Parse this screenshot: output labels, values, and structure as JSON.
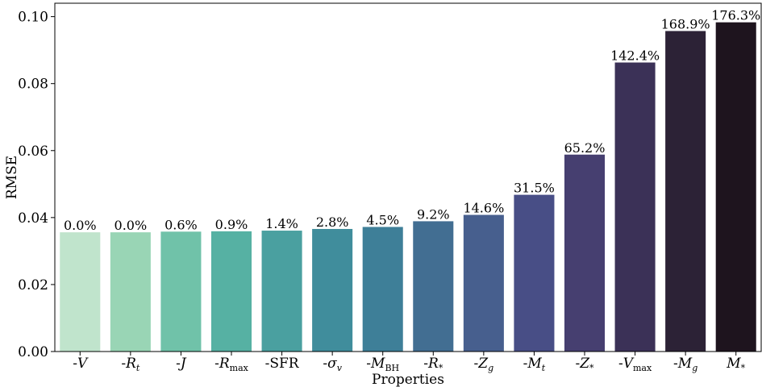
{
  "chart_data": {
    "type": "bar",
    "xlabel": "Properties",
    "ylabel": "RMSE",
    "ylim": [
      0,
      0.104
    ],
    "yticks": [
      "0.00",
      "0.02",
      "0.04",
      "0.06",
      "0.08",
      "0.10"
    ],
    "ytick_values": [
      0,
      0.02,
      0.04,
      0.06,
      0.08,
      0.1
    ],
    "grid": false,
    "categories": [
      {
        "prefix": "-",
        "sym": "V",
        "sub": ""
      },
      {
        "prefix": "-",
        "sym": "R",
        "sub": "t"
      },
      {
        "prefix": "-",
        "sym": "J",
        "sub": ""
      },
      {
        "prefix": "-",
        "sym": "R",
        "sub": "max"
      },
      {
        "prefix": "-",
        "sym": "SFR",
        "sub": ""
      },
      {
        "prefix": "-",
        "sym": "σ",
        "sub": "v"
      },
      {
        "prefix": "-",
        "sym": "M",
        "sub": "BH"
      },
      {
        "prefix": "-",
        "sym": "R",
        "sub": "*"
      },
      {
        "prefix": "-",
        "sym": "Z",
        "sub": "g"
      },
      {
        "prefix": "-",
        "sym": "M",
        "sub": "t"
      },
      {
        "prefix": "-",
        "sym": "Z",
        "sub": "*"
      },
      {
        "prefix": "-",
        "sym": "V",
        "sub": "max"
      },
      {
        "prefix": "-",
        "sym": "M",
        "sub": "g"
      },
      {
        "prefix": "",
        "sym": "M",
        "sub": "*"
      }
    ],
    "values": [
      0.0356,
      0.0356,
      0.0358,
      0.0359,
      0.0361,
      0.0366,
      0.0372,
      0.0389,
      0.0408,
      0.0468,
      0.0588,
      0.0863,
      0.0957,
      0.0983
    ],
    "labels": [
      "0.0%",
      "0.0%",
      "0.6%",
      "0.9%",
      "1.4%",
      "2.8%",
      "4.5%",
      "9.2%",
      "14.6%",
      "31.5%",
      "65.2%",
      "142.4%",
      "168.9%",
      "176.3%"
    ],
    "colors": [
      "#c0e4cc",
      "#99d5b5",
      "#70c2a9",
      "#56b1a3",
      "#4aa0a0",
      "#408d9c",
      "#3e7f98",
      "#426e92",
      "#475f8e",
      "#484e86",
      "#463f70",
      "#3b3157",
      "#2c2236",
      "#1e141e"
    ]
  }
}
